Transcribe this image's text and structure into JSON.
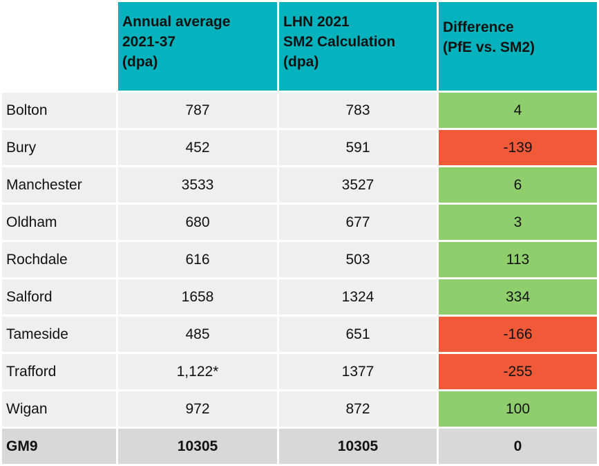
{
  "chart_data": {
    "type": "table",
    "columns": [
      "",
      [
        "Annual average",
        "2021-37",
        "(dpa)"
      ],
      [
        "LHN 2021",
        "SM2 Calculation",
        "(dpa)"
      ],
      [
        "Difference",
        "(PfE vs. SM2)"
      ]
    ],
    "rows": [
      {
        "name": "Bolton",
        "annual": "787",
        "lhn": "783",
        "diff": "4",
        "diff_value": 4
      },
      {
        "name": "Bury",
        "annual": "452",
        "lhn": "591",
        "diff": "-139",
        "diff_value": -139
      },
      {
        "name": "Manchester",
        "annual": "3533",
        "lhn": "3527",
        "diff": "6",
        "diff_value": 6
      },
      {
        "name": "Oldham",
        "annual": "680",
        "lhn": "677",
        "diff": "3",
        "diff_value": 3
      },
      {
        "name": "Rochdale",
        "annual": "616",
        "lhn": "503",
        "diff": "113",
        "diff_value": 113
      },
      {
        "name": "Salford",
        "annual": "1658",
        "lhn": "1324",
        "diff": "334",
        "diff_value": 334
      },
      {
        "name": "Tameside",
        "annual": "485",
        "lhn": "651",
        "diff": "-166",
        "diff_value": -166
      },
      {
        "name": "Trafford",
        "annual": "1,122*",
        "lhn": "1377",
        "diff": "-255",
        "diff_value": -255
      },
      {
        "name": "Wigan",
        "annual": "972",
        "lhn": "872",
        "diff": "100",
        "diff_value": 100
      }
    ],
    "total": {
      "name": "GM9",
      "annual": "10305",
      "lhn": "10305",
      "diff": "0"
    },
    "colors": {
      "header": "#04b3bd",
      "positive": "#8fce6c",
      "negative": "#f05a38",
      "row": "#efefef",
      "total": "#d8d8d8"
    }
  }
}
